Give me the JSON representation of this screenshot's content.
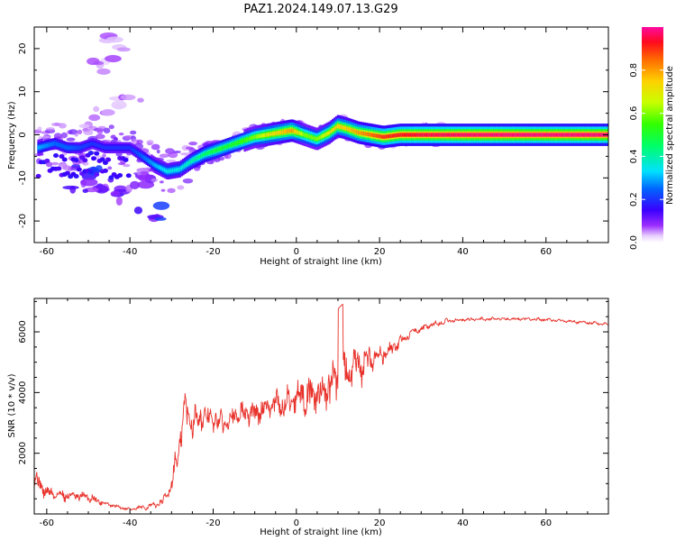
{
  "title": "PAZ1.2024.149.07.13.G29",
  "chart_data": [
    {
      "type": "heatmap",
      "xlabel": "Height of straight line (km)",
      "ylabel": "Frequency (Hz)",
      "xlim": [
        -63,
        75
      ],
      "ylim": [
        -25,
        25
      ],
      "xticks": [
        -60,
        -40,
        -20,
        0,
        20,
        40,
        60
      ],
      "xtick_labels": [
        "-60",
        "-40",
        "-20",
        "0",
        "20",
        "40",
        "60"
      ],
      "yticks": [
        -20,
        -10,
        0,
        10,
        20
      ],
      "ytick_labels": [
        "-20",
        "-10",
        "0",
        "10",
        "20"
      ],
      "colorbar": {
        "label": "Normalized spectral amplitude",
        "range": [
          0,
          1
        ],
        "ticks": [
          0.0,
          0.2,
          0.4,
          0.6,
          0.8
        ],
        "tick_labels": [
          "0.0",
          "0.2",
          "0.4",
          "0.6",
          "0.8"
        ],
        "colormap": "gist_rainbow_r",
        "placement": "right"
      },
      "ridge": {
        "x": [
          -62,
          -58,
          -55,
          -52,
          -49,
          -46,
          -43,
          -40,
          -37,
          -34,
          -31,
          -28,
          -25,
          -22,
          -19,
          -16,
          -13,
          -10,
          -7,
          -4,
          -1,
          2,
          5,
          8,
          10,
          12,
          15,
          18,
          21,
          25,
          30,
          40,
          50,
          60,
          75
        ],
        "y": [
          -3,
          -2,
          -3,
          -3,
          -2,
          -3,
          -3,
          -3,
          -5,
          -7,
          -8.5,
          -8,
          -6,
          -4.5,
          -3.5,
          -2.5,
          -1.5,
          -0.5,
          0,
          0.5,
          1,
          0,
          -1,
          0.5,
          2,
          1.5,
          0.5,
          0,
          -0.5,
          0,
          0,
          0,
          0,
          0,
          0
        ],
        "amplitude": [
          0.3,
          0.25,
          0.25,
          0.22,
          0.2,
          0.2,
          0.2,
          0.2,
          0.25,
          0.3,
          0.35,
          0.35,
          0.4,
          0.45,
          0.5,
          0.5,
          0.55,
          0.6,
          0.7,
          0.75,
          0.8,
          0.6,
          0.6,
          0.7,
          0.75,
          0.75,
          0.8,
          0.85,
          0.9,
          0.92,
          0.95,
          0.97,
          0.98,
          0.98,
          0.98
        ]
      },
      "scatter_patches": [
        {
          "x": -50,
          "y": -9,
          "amp": 0.15
        },
        {
          "x": -46,
          "y": -12,
          "amp": 0.12
        },
        {
          "x": -42,
          "y": -14,
          "amp": 0.1
        },
        {
          "x": -35,
          "y": -18,
          "amp": 0.15
        },
        {
          "x": -52,
          "y": -13,
          "amp": 0.1
        },
        {
          "x": -44,
          "y": 21,
          "amp": 0.05
        },
        {
          "x": -46,
          "y": 16,
          "amp": 0.05
        },
        {
          "x": -40,
          "y": 8,
          "amp": 0.05
        },
        {
          "x": -48,
          "y": 4,
          "amp": 0.05
        },
        {
          "x": -38,
          "y": -10,
          "amp": 0.08
        }
      ],
      "grid": false
    },
    {
      "type": "line",
      "xlabel": "Height of straight line (km)",
      "ylabel": "SNR (10 * v/v)",
      "xlim": [
        -63,
        75
      ],
      "ylim": [
        0,
        7100
      ],
      "xticks": [
        -60,
        -40,
        -20,
        0,
        20,
        40,
        60
      ],
      "xtick_labels": [
        "-60",
        "-40",
        "-20",
        "0",
        "20",
        "40",
        "60"
      ],
      "yticks": [
        2000,
        4000,
        6000
      ],
      "ytick_labels": [
        "2000",
        "4000",
        "6000"
      ],
      "color": "#e8312a",
      "envelope": {
        "x": [
          -63,
          -60,
          -55,
          -50,
          -45,
          -40,
          -35,
          -32,
          -30,
          -28,
          -27,
          -25,
          -22,
          -18,
          -14,
          -10,
          -6,
          -3,
          0,
          3,
          6,
          9,
          11,
          13,
          16,
          19,
          22,
          25,
          28,
          32,
          36,
          40,
          45,
          50,
          55,
          60,
          65,
          70,
          75
        ],
        "y": [
          1200,
          700,
          600,
          550,
          300,
          150,
          250,
          400,
          1000,
          2300,
          3400,
          3100,
          3200,
          3000,
          3300,
          3300,
          3600,
          3600,
          3900,
          3900,
          4000,
          4300,
          4600,
          4700,
          4900,
          5200,
          5300,
          5700,
          6000,
          6200,
          6350,
          6400,
          6420,
          6430,
          6420,
          6400,
          6350,
          6300,
          6250
        ],
        "noise": [
          500,
          350,
          300,
          250,
          100,
          80,
          150,
          200,
          500,
          900,
          1000,
          800,
          700,
          600,
          600,
          600,
          650,
          700,
          800,
          1000,
          1100,
          1200,
          1300,
          1200,
          900,
          600,
          400,
          300,
          200,
          150,
          120,
          100,
          90,
          80,
          80,
          80,
          80,
          80,
          80
        ]
      },
      "grid": false
    }
  ]
}
